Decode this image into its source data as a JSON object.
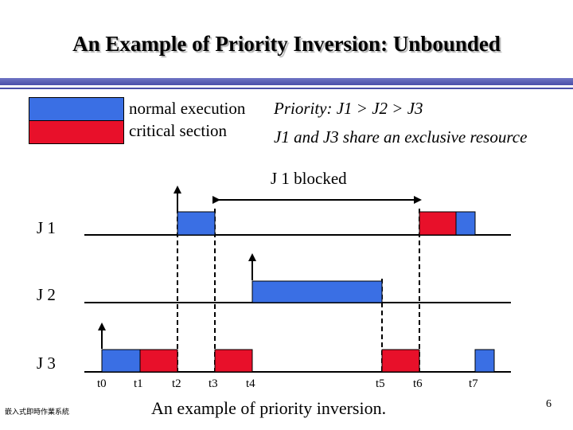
{
  "title": "An Example of Priority Inversion: Unbounded",
  "legend": {
    "normal_label": "normal execution",
    "critical_label": "critical section",
    "normal_color": "#3a6fe4",
    "critical_color": "#e8102a"
  },
  "priority_text": "Priority: J1 >  J2 > J3",
  "share_text": "J1 and J3 share an exclusive resource",
  "blocked_label": "J 1   blocked",
  "jobs": [
    {
      "label": "J 1"
    },
    {
      "label": "J 2"
    },
    {
      "label": "J 3"
    }
  ],
  "time_labels": [
    "t0",
    "t1",
    "t2",
    "t3",
    "t4",
    "t5",
    "t6",
    "t7"
  ],
  "caption": "An example of priority inversion.",
  "footer": "嵌入式即時作業系統",
  "page_number": "6"
}
